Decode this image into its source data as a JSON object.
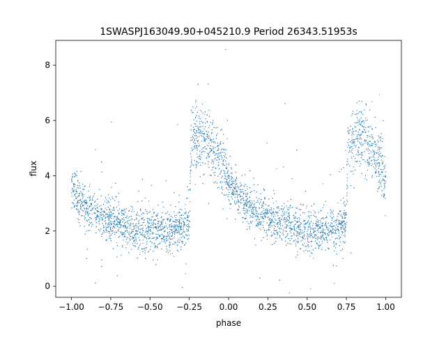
{
  "chart_data": {
    "type": "scatter",
    "title": "1SWASPJ163049.90+045210.9 Period 26343.51953s",
    "xlabel": "phase",
    "ylabel": "flux",
    "xlim": [
      -1.1,
      1.1
    ],
    "ylim": [
      -0.4,
      8.9
    ],
    "xticks": [
      -1.0,
      -0.75,
      -0.5,
      -0.25,
      0.0,
      0.25,
      0.5,
      0.75,
      1.0
    ],
    "xtick_labels": [
      "−1.00",
      "−0.75",
      "−0.50",
      "−0.25",
      "0.00",
      "0.25",
      "0.50",
      "0.75",
      "1.00"
    ],
    "yticks": [
      0,
      2,
      4,
      6,
      8
    ],
    "ytick_labels": [
      "0",
      "2",
      "4",
      "6",
      "8"
    ],
    "grid": false,
    "legend": "none",
    "marker_color": "#1f77b4",
    "series": [
      {
        "phase_range": [
          -1.0,
          1.0
        ],
        "points": [
          [
            -1.0,
            3.6
          ],
          [
            -0.95,
            3.1
          ],
          [
            -0.9,
            2.8
          ],
          [
            -0.8,
            2.5
          ],
          [
            -0.7,
            2.3
          ],
          [
            -0.6,
            2.1
          ],
          [
            -0.5,
            2.05
          ],
          [
            -0.4,
            2.0
          ],
          [
            -0.3,
            2.1
          ],
          [
            -0.25,
            2.3
          ],
          [
            -0.24,
            5.2
          ],
          [
            -0.2,
            5.5
          ],
          [
            -0.15,
            5.3
          ],
          [
            -0.1,
            5.0
          ],
          [
            -0.05,
            4.5
          ],
          [
            0.0,
            3.9
          ],
          [
            0.05,
            3.3
          ],
          [
            0.1,
            3.0
          ],
          [
            0.2,
            2.6
          ],
          [
            0.3,
            2.35
          ],
          [
            0.4,
            2.2
          ],
          [
            0.5,
            2.05
          ],
          [
            0.6,
            2.0
          ],
          [
            0.7,
            2.1
          ],
          [
            0.75,
            2.3
          ],
          [
            0.76,
            5.2
          ],
          [
            0.8,
            5.5
          ],
          [
            0.85,
            5.3
          ],
          [
            0.9,
            5.0
          ],
          [
            0.95,
            4.5
          ],
          [
            1.0,
            3.9
          ]
        ]
      }
    ]
  }
}
